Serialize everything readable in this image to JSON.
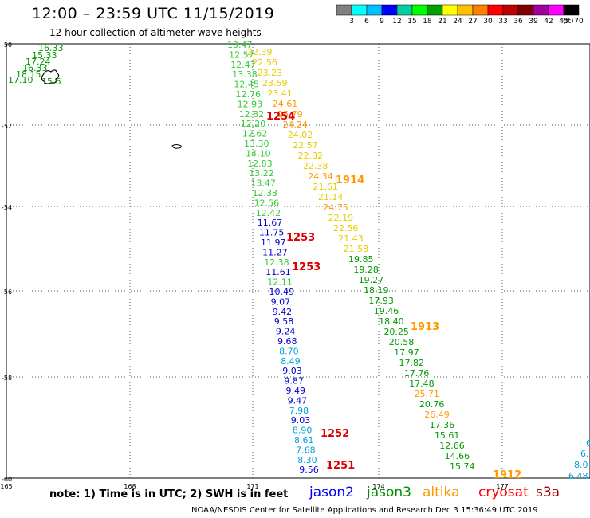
{
  "title": "12:00 – 23:59 UTC 11/15/2019",
  "subtitle": "12 hour collection of altimeter wave heights",
  "color_scale": {
    "unit": "(ft)",
    "ticks": [
      "3",
      "6",
      "9",
      "12",
      "15",
      "18",
      "21",
      "24",
      "27",
      "30",
      "33",
      "36",
      "39",
      "42",
      "45",
      "70"
    ],
    "colors": [
      "#808080",
      "#00ffff",
      "#00c0ff",
      "#0000ff",
      "#00d0a0",
      "#00ff00",
      "#00a000",
      "#ffff00",
      "#ffc000",
      "#ff8000",
      "#ff0000",
      "#c00000",
      "#800000",
      "#a000a0",
      "#ff00ff",
      "#000000"
    ]
  },
  "axes": {
    "lat_labels": [
      "-50",
      "-52",
      "-54",
      "-56",
      "-58",
      "-60"
    ],
    "lon_labels": [
      "165",
      "168",
      "171",
      "174",
      "177"
    ]
  },
  "note": "note:  1) Time is in UTC;  2) SWH is in feet",
  "satellites": [
    {
      "name": "jason2",
      "color": "#0000ff"
    },
    {
      "name": "jason3",
      "color": "#009000"
    },
    {
      "name": "altika",
      "color": "#ff9900"
    },
    {
      "name": "cryosat",
      "color": "#ff0000"
    },
    {
      "name": "s3a",
      "color": "#a00000"
    }
  ],
  "footer": "NOAA/NESDIS Center for Satellite Applications and Research     Dec  3 15:36:49 UTC 2019",
  "map_data": {
    "track_a": {
      "color_map": {
        "b": "#0000cc",
        "c": "#00a0e0",
        "g": "#33cc33"
      },
      "points": [
        [
          "13.47",
          "g"
        ],
        [
          "12.57",
          "g"
        ],
        [
          "12.47",
          "g"
        ],
        [
          "13.38",
          "g"
        ],
        [
          "12.45",
          "g"
        ],
        [
          "12.76",
          "g"
        ],
        [
          "12.93",
          "g"
        ],
        [
          "12.82",
          "g"
        ],
        [
          "12.20",
          "g"
        ],
        [
          "12.62",
          "g"
        ],
        [
          "13.30",
          "g"
        ],
        [
          "14.10",
          "g"
        ],
        [
          "12.83",
          "g"
        ],
        [
          "13.22",
          "g"
        ],
        [
          "13.47",
          "g"
        ],
        [
          "12.33",
          "g"
        ],
        [
          "12.56",
          "g"
        ],
        [
          "12.42",
          "g"
        ],
        [
          "11.67",
          "b"
        ],
        [
          "11.75",
          "b"
        ],
        [
          "11.97",
          "b"
        ],
        [
          "11.27",
          "b"
        ],
        [
          "12.38",
          "g"
        ],
        [
          "11.61",
          "b"
        ],
        [
          "12.11",
          "g"
        ],
        [
          "10.49",
          "b"
        ],
        [
          "9.07",
          "b"
        ],
        [
          "9.42",
          "b"
        ],
        [
          "9.58",
          "b"
        ],
        [
          "9.24",
          "b"
        ],
        [
          "9.68",
          "b"
        ],
        [
          "8.70",
          "c"
        ],
        [
          "8.49",
          "c"
        ],
        [
          "9.03",
          "b"
        ],
        [
          "9.87",
          "b"
        ],
        [
          "9.49",
          "b"
        ],
        [
          "9.47",
          "b"
        ],
        [
          "7.98",
          "c"
        ],
        [
          "9.03",
          "b"
        ],
        [
          "8.90",
          "c"
        ],
        [
          "8.61",
          "c"
        ],
        [
          "7.68",
          "c"
        ],
        [
          "8.30",
          "c"
        ],
        [
          "9.56",
          "b"
        ]
      ]
    },
    "track_b": {
      "color_map": {
        "y": "#e6cc00",
        "o": "#ff9900",
        "g": "#009900"
      },
      "points": [
        [
          "22.39",
          "y"
        ],
        [
          "22.56",
          "y"
        ],
        [
          "23.23",
          "y"
        ],
        [
          "23.59",
          "y"
        ],
        [
          "23.41",
          "y"
        ],
        [
          "24.61",
          "o"
        ],
        [
          "25.79",
          "o"
        ],
        [
          "24.24",
          "o"
        ],
        [
          "24.02",
          "y"
        ],
        [
          "22.57",
          "y"
        ],
        [
          "22.82",
          "y"
        ],
        [
          "22.38",
          "y"
        ],
        [
          "24.34",
          "o"
        ],
        [
          "21.61",
          "y"
        ],
        [
          "21.14",
          "y"
        ],
        [
          "24.75",
          "o"
        ],
        [
          "22.19",
          "y"
        ],
        [
          "22.56",
          "y"
        ],
        [
          "21.43",
          "y"
        ],
        [
          "21.58",
          "y"
        ],
        [
          "19.85",
          "g"
        ],
        [
          "19.28",
          "g"
        ],
        [
          "19.27",
          "g"
        ],
        [
          "18.19",
          "g"
        ],
        [
          "17.93",
          "g"
        ],
        [
          "19.46",
          "g"
        ],
        [
          "18.40",
          "g"
        ],
        [
          "20.25",
          "g"
        ],
        [
          "20.58",
          "g"
        ],
        [
          "17.97",
          "g"
        ],
        [
          "17.82",
          "g"
        ],
        [
          "17.76",
          "g"
        ],
        [
          "17.48",
          "g"
        ],
        [
          "25.71",
          "o"
        ],
        [
          "20.76",
          "g"
        ],
        [
          "26.49",
          "o"
        ],
        [
          "17.36",
          "g"
        ],
        [
          "15.61",
          "g"
        ],
        [
          "12.66",
          "g"
        ],
        [
          "14.66",
          "g"
        ],
        [
          "15.74",
          "g"
        ]
      ]
    },
    "corner_points": [
      {
        "value": "16.33",
        "color": "#009900"
      },
      {
        "value": "15.33",
        "color": "#009900"
      },
      {
        "value": "17.24",
        "color": "#009900"
      },
      {
        "value": "16.33",
        "color": "#009900"
      },
      {
        "value": "18.15",
        "color": "#009900"
      },
      {
        "value": "17.10",
        "color": "#009900"
      },
      {
        "value": "15.6",
        "color": "#009900"
      }
    ],
    "right_points": [
      {
        "value": "6",
        "color": "#00a0e0"
      },
      {
        "value": "6.",
        "color": "#00a0e0"
      },
      {
        "value": "8.0",
        "color": "#00a0e0"
      },
      {
        "value": "6.48",
        "color": "#00a0e0"
      }
    ],
    "times": [
      {
        "value": "1254",
        "color": "#dd0000"
      },
      {
        "value": "1914",
        "color": "#ff9900"
      },
      {
        "value": "1253",
        "color": "#dd0000"
      },
      {
        "value": "1253",
        "color": "#dd0000"
      },
      {
        "value": "1913",
        "color": "#ff9900"
      },
      {
        "value": "1252",
        "color": "#dd0000"
      },
      {
        "value": "1251",
        "color": "#dd0000"
      },
      {
        "value": "1912",
        "color": "#ff9900"
      }
    ]
  }
}
